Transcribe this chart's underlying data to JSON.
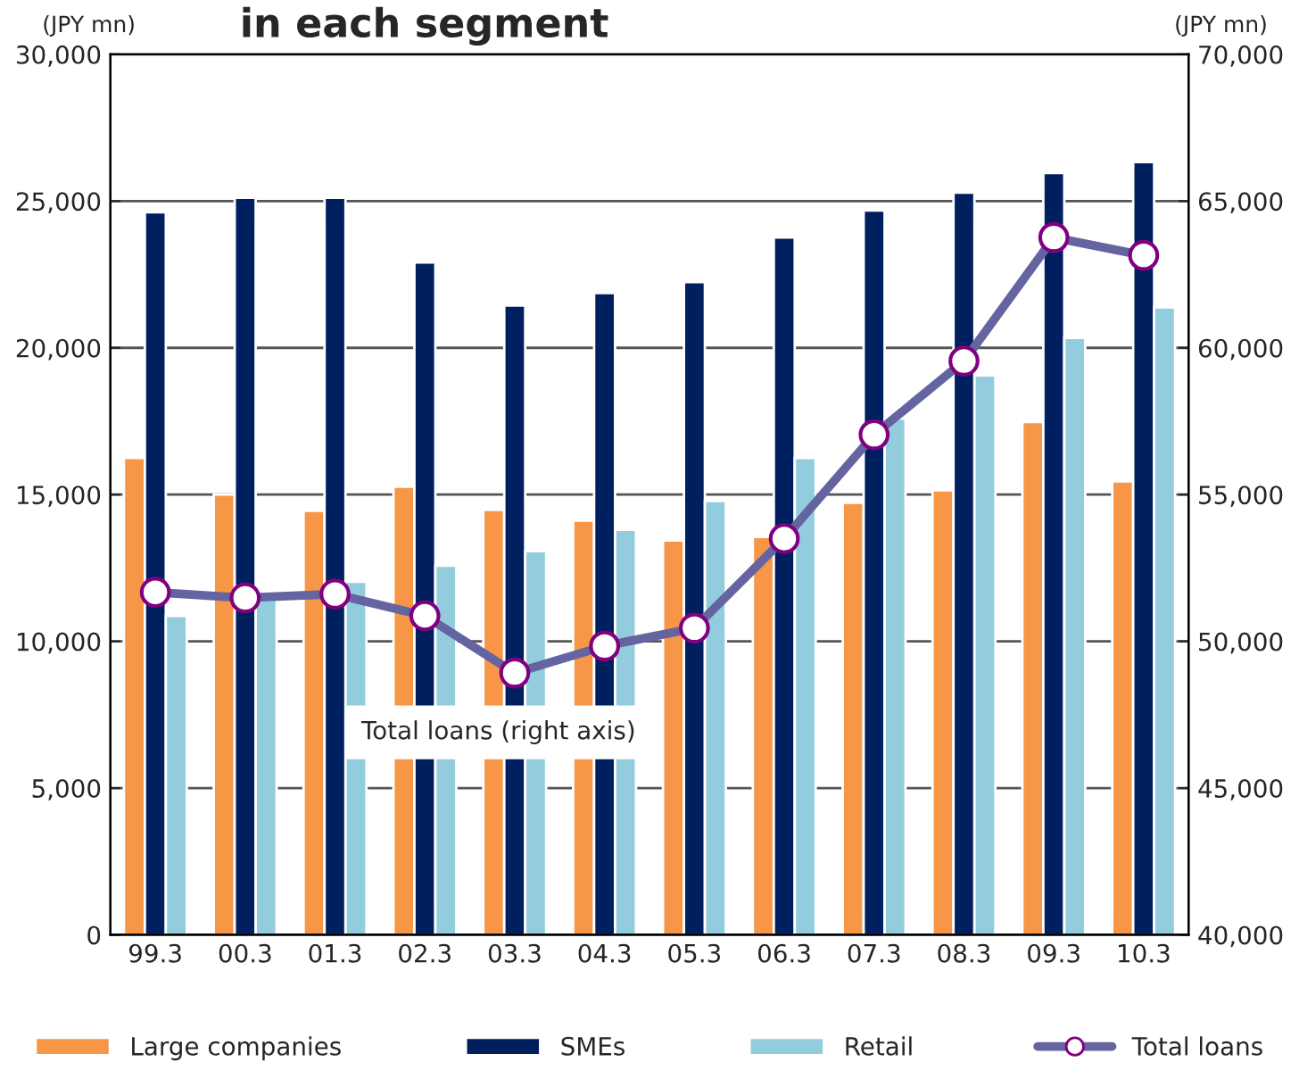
{
  "chart_data": {
    "type": "bar",
    "title": "in each segment",
    "ylabel": "(JPY mn)",
    "y2label": "(JPY mn)",
    "categories": [
      "99.3",
      "00.3",
      "01.3",
      "02.3",
      "03.3",
      "04.3",
      "05.3",
      "06.3",
      "07.3",
      "08.3",
      "09.3",
      "10.3"
    ],
    "series": [
      {
        "name": "Large companies",
        "color": "#f79646",
        "values": [
          16250,
          15000,
          14450,
          15270,
          14480,
          14110,
          13440,
          13560,
          14720,
          15150,
          17470,
          15450
        ]
      },
      {
        "name": "SMEs",
        "color": "#001f5f",
        "values": [
          24620,
          25110,
          25110,
          22910,
          21440,
          21870,
          22240,
          23760,
          24680,
          25290,
          25960,
          26330
        ]
      },
      {
        "name": "Retail",
        "color": "#93cddd",
        "values": [
          10870,
          11480,
          12030,
          12580,
          13070,
          13800,
          14780,
          16250,
          17590,
          19060,
          20340,
          21380
        ]
      },
      {
        "name": "Total loans",
        "type": "line",
        "axis": "y2",
        "color": "#6464a0",
        "marker": "circle",
        "values": [
          51670,
          51480,
          51610,
          50870,
          48920,
          49840,
          50450,
          53500,
          57040,
          59550,
          63760,
          63150
        ]
      }
    ],
    "ylim": [
      0,
      30000
    ],
    "yticks": [
      {
        "value": 0,
        "label": "0"
      },
      {
        "value": 5000,
        "label": "5,000"
      },
      {
        "value": 10000,
        "label": "10,000"
      },
      {
        "value": 15000,
        "label": "15,000"
      },
      {
        "value": 20000,
        "label": "20,000"
      },
      {
        "value": 25000,
        "label": "25,000"
      },
      {
        "value": 30000,
        "label": "30,000"
      }
    ],
    "y2lim": [
      40000,
      70000
    ],
    "y2ticks": [
      {
        "value": 40000,
        "label": "40,000"
      },
      {
        "value": 45000,
        "label": "45,000"
      },
      {
        "value": 50000,
        "label": "50,000"
      },
      {
        "value": 55000,
        "label": "55,000"
      },
      {
        "value": 60000,
        "label": "60,000"
      },
      {
        "value": 65000,
        "label": "65,000"
      },
      {
        "value": 70000,
        "label": "70,000"
      }
    ],
    "annotations": [
      "Total loans (right axis)"
    ],
    "grid": "y",
    "legend": "bottom"
  }
}
